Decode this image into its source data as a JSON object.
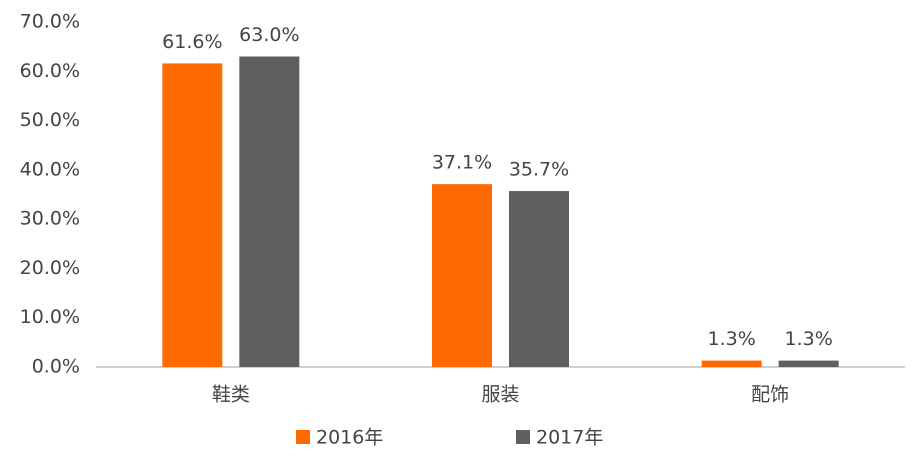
{
  "chart_data": {
    "type": "bar",
    "categories": [
      "鞋类",
      "服装",
      "配饰"
    ],
    "series": [
      {
        "name": "2016年",
        "color": "#ff6a00",
        "values": [
          61.6,
          37.1,
          1.3
        ],
        "value_labels": [
          "61.6%",
          "37.1%",
          "1.3%"
        ]
      },
      {
        "name": "2017年",
        "color": "#5f5f5f",
        "values": [
          63.0,
          35.7,
          1.3
        ],
        "value_labels": [
          "63.0%",
          "35.7%",
          "1.3%"
        ]
      }
    ],
    "ylim": [
      0,
      70
    ],
    "yticks": [
      {
        "value": 0,
        "label": "0.0%"
      },
      {
        "value": 10,
        "label": "10.0%"
      },
      {
        "value": 20,
        "label": "20.0%"
      },
      {
        "value": 30,
        "label": "30.0%"
      },
      {
        "value": 40,
        "label": "40.0%"
      },
      {
        "value": 50,
        "label": "50.0%"
      },
      {
        "value": 60,
        "label": "60.0%"
      },
      {
        "value": 70,
        "label": "70.0%"
      }
    ],
    "grid": false,
    "legend": "bottom"
  }
}
